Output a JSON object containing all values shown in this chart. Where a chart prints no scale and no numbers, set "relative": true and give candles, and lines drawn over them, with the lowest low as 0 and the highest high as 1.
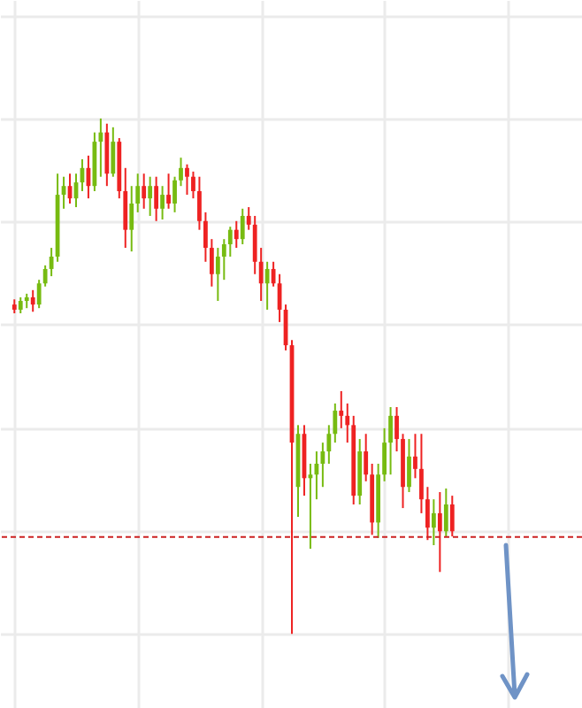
{
  "chart_data": {
    "type": "candlestick",
    "relative": true,
    "grid": true,
    "colors": [
      "#ee2222",
      "#77bb11",
      "#77bb11",
      "#ee2222",
      "#77bb11",
      "#77bb11",
      "#77bb11",
      "#77bb11",
      "#77bb11",
      "#ee2222",
      "#77bb11",
      "#77bb11",
      "#ee2222",
      "#77bb11",
      "#77bb11",
      "#ee2222",
      "#77bb11",
      "#ee2222",
      "#ee2222",
      "#77bb11",
      "#77bb11",
      "#ee2222",
      "#77bb11",
      "#ee2222",
      "#77bb11",
      "#ee2222",
      "#77bb11",
      "#77bb11",
      "#ee2222",
      "#ee2222",
      "#ee2222",
      "#ee2222",
      "#ee2222",
      "#77bb11",
      "#77bb11",
      "#77bb11",
      "#ee2222",
      "#77bb11",
      "#ee2222",
      "#ee2222",
      "#ee2222",
      "#77bb11",
      "#ee2222",
      "#ee2222",
      "#ee2222",
      "#ee2222",
      "#77bb11",
      "#ee2222",
      "#77bb11",
      "#77bb11",
      "#77bb11",
      "#77bb11",
      "#77bb11",
      "#ee2222",
      "#ee2222",
      "#ee2222",
      "#77bb11",
      "#ee2222",
      "#ee2222",
      "#77bb11",
      "#77bb11",
      "#77bb11",
      "#ee2222",
      "#ee2222",
      "#77bb11",
      "#ee2222",
      "#ee2222",
      "#ee2222",
      "#77bb11",
      "#ee2222",
      "#77bb11",
      "#ee2222"
    ],
    "categories": [
      null,
      null,
      null,
      null,
      null,
      null,
      null,
      null,
      null,
      null,
      null,
      null,
      null,
      null,
      null,
      null,
      null,
      null,
      null,
      null,
      null,
      null,
      null,
      null,
      null,
      null,
      null,
      null,
      null,
      null,
      null,
      null,
      null,
      null,
      null,
      null,
      null,
      null,
      null,
      null,
      null,
      null,
      null,
      null,
      null,
      null,
      null,
      null,
      null,
      null,
      null,
      null,
      null,
      null,
      null,
      null,
      null,
      null,
      null,
      null,
      null,
      null,
      null,
      null,
      null,
      null,
      null,
      null,
      null,
      null,
      null,
      null
    ],
    "ohlc": [
      [
        0.639,
        0.649,
        0.622,
        0.629
      ],
      [
        0.629,
        0.653,
        0.622,
        0.646
      ],
      [
        0.646,
        0.66,
        0.632,
        0.653
      ],
      [
        0.653,
        0.667,
        0.625,
        0.639
      ],
      [
        0.639,
        0.687,
        0.632,
        0.68
      ],
      [
        0.68,
        0.715,
        0.674,
        0.708
      ],
      [
        0.708,
        0.749,
        0.694,
        0.732
      ],
      [
        0.732,
        0.893,
        0.722,
        0.852
      ],
      [
        0.852,
        0.887,
        0.825,
        0.869
      ],
      [
        0.869,
        0.893,
        0.835,
        0.845
      ],
      [
        0.845,
        0.893,
        0.828,
        0.876
      ],
      [
        0.876,
        0.921,
        0.859,
        0.904
      ],
      [
        0.904,
        0.928,
        0.845,
        0.869
      ],
      [
        0.869,
        0.973,
        0.859,
        0.955
      ],
      [
        0.955,
        1.0,
        0.887,
        0.973
      ],
      [
        0.973,
        0.99,
        0.869,
        0.893
      ],
      [
        0.893,
        0.983,
        0.887,
        0.955
      ],
      [
        0.955,
        0.962,
        0.845,
        0.859
      ],
      [
        0.859,
        0.904,
        0.749,
        0.784
      ],
      [
        0.784,
        0.869,
        0.742,
        0.835
      ],
      [
        0.835,
        0.893,
        0.818,
        0.869
      ],
      [
        0.869,
        0.893,
        0.825,
        0.845
      ],
      [
        0.845,
        0.887,
        0.811,
        0.869
      ],
      [
        0.869,
        0.887,
        0.801,
        0.825
      ],
      [
        0.825,
        0.869,
        0.804,
        0.852
      ],
      [
        0.852,
        0.893,
        0.825,
        0.835
      ],
      [
        0.835,
        0.887,
        0.818,
        0.88
      ],
      [
        0.88,
        0.924,
        0.869,
        0.904
      ],
      [
        0.904,
        0.911,
        0.852,
        0.887
      ],
      [
        0.887,
        0.897,
        0.845,
        0.859
      ],
      [
        0.859,
        0.887,
        0.784,
        0.801
      ],
      [
        0.801,
        0.818,
        0.722,
        0.749
      ],
      [
        0.749,
        0.766,
        0.674,
        0.698
      ],
      [
        0.698,
        0.749,
        0.646,
        0.732
      ],
      [
        0.732,
        0.766,
        0.687,
        0.756
      ],
      [
        0.756,
        0.79,
        0.732,
        0.784
      ],
      [
        0.784,
        0.801,
        0.749,
        0.766
      ],
      [
        0.766,
        0.825,
        0.756,
        0.811
      ],
      [
        0.811,
        0.828,
        0.784,
        0.794
      ],
      [
        0.794,
        0.811,
        0.698,
        0.722
      ],
      [
        0.722,
        0.749,
        0.646,
        0.68
      ],
      [
        0.68,
        0.722,
        0.629,
        0.708
      ],
      [
        0.708,
        0.722,
        0.674,
        0.68
      ],
      [
        0.68,
        0.698,
        0.605,
        0.629
      ],
      [
        0.629,
        0.639,
        0.55,
        0.56
      ],
      [
        0.56,
        0.57,
        0,
        0.371
      ],
      [
        0.285,
        0.405,
        0.227,
        0.388
      ],
      [
        0.388,
        0.405,
        0.268,
        0.302
      ],
      [
        0.302,
        0.33,
        0.165,
        0.309
      ],
      [
        0.309,
        0.354,
        0.261,
        0.33
      ],
      [
        0.33,
        0.371,
        0.285,
        0.354
      ],
      [
        0.354,
        0.405,
        0.33,
        0.388
      ],
      [
        0.388,
        0.447,
        0.371,
        0.433
      ],
      [
        0.433,
        0.471,
        0.399,
        0.423
      ],
      [
        0.423,
        0.447,
        0.371,
        0.405
      ],
      [
        0.405,
        0.423,
        0.251,
        0.268
      ],
      [
        0.268,
        0.378,
        0.251,
        0.354
      ],
      [
        0.354,
        0.388,
        0.296,
        0.309
      ],
      [
        0.309,
        0.33,
        0.192,
        0.216
      ],
      [
        0.216,
        0.33,
        0.186,
        0.309
      ],
      [
        0.309,
        0.399,
        0.296,
        0.371
      ],
      [
        0.371,
        0.44,
        0.309,
        0.423
      ],
      [
        0.423,
        0.44,
        0.354,
        0.378
      ],
      [
        0.378,
        0.388,
        0.244,
        0.285
      ],
      [
        0.285,
        0.378,
        0.275,
        0.344
      ],
      [
        0.344,
        0.388,
        0.302,
        0.32
      ],
      [
        0.32,
        0.388,
        0.234,
        0.261
      ],
      [
        0.261,
        0.285,
        0.182,
        0.206
      ],
      [
        0.206,
        0.261,
        0.172,
        0.234
      ],
      [
        0.234,
        0.275,
        0.12,
        0.199
      ],
      [
        0.199,
        0.282,
        0.189,
        0.251
      ],
      [
        0.251,
        0.268,
        0.189,
        0.199
      ]
    ],
    "ref_lines": [
      {
        "axis": "y",
        "value": 0.188,
        "color": "#cc2222",
        "line_style": "dashed"
      }
    ]
  }
}
